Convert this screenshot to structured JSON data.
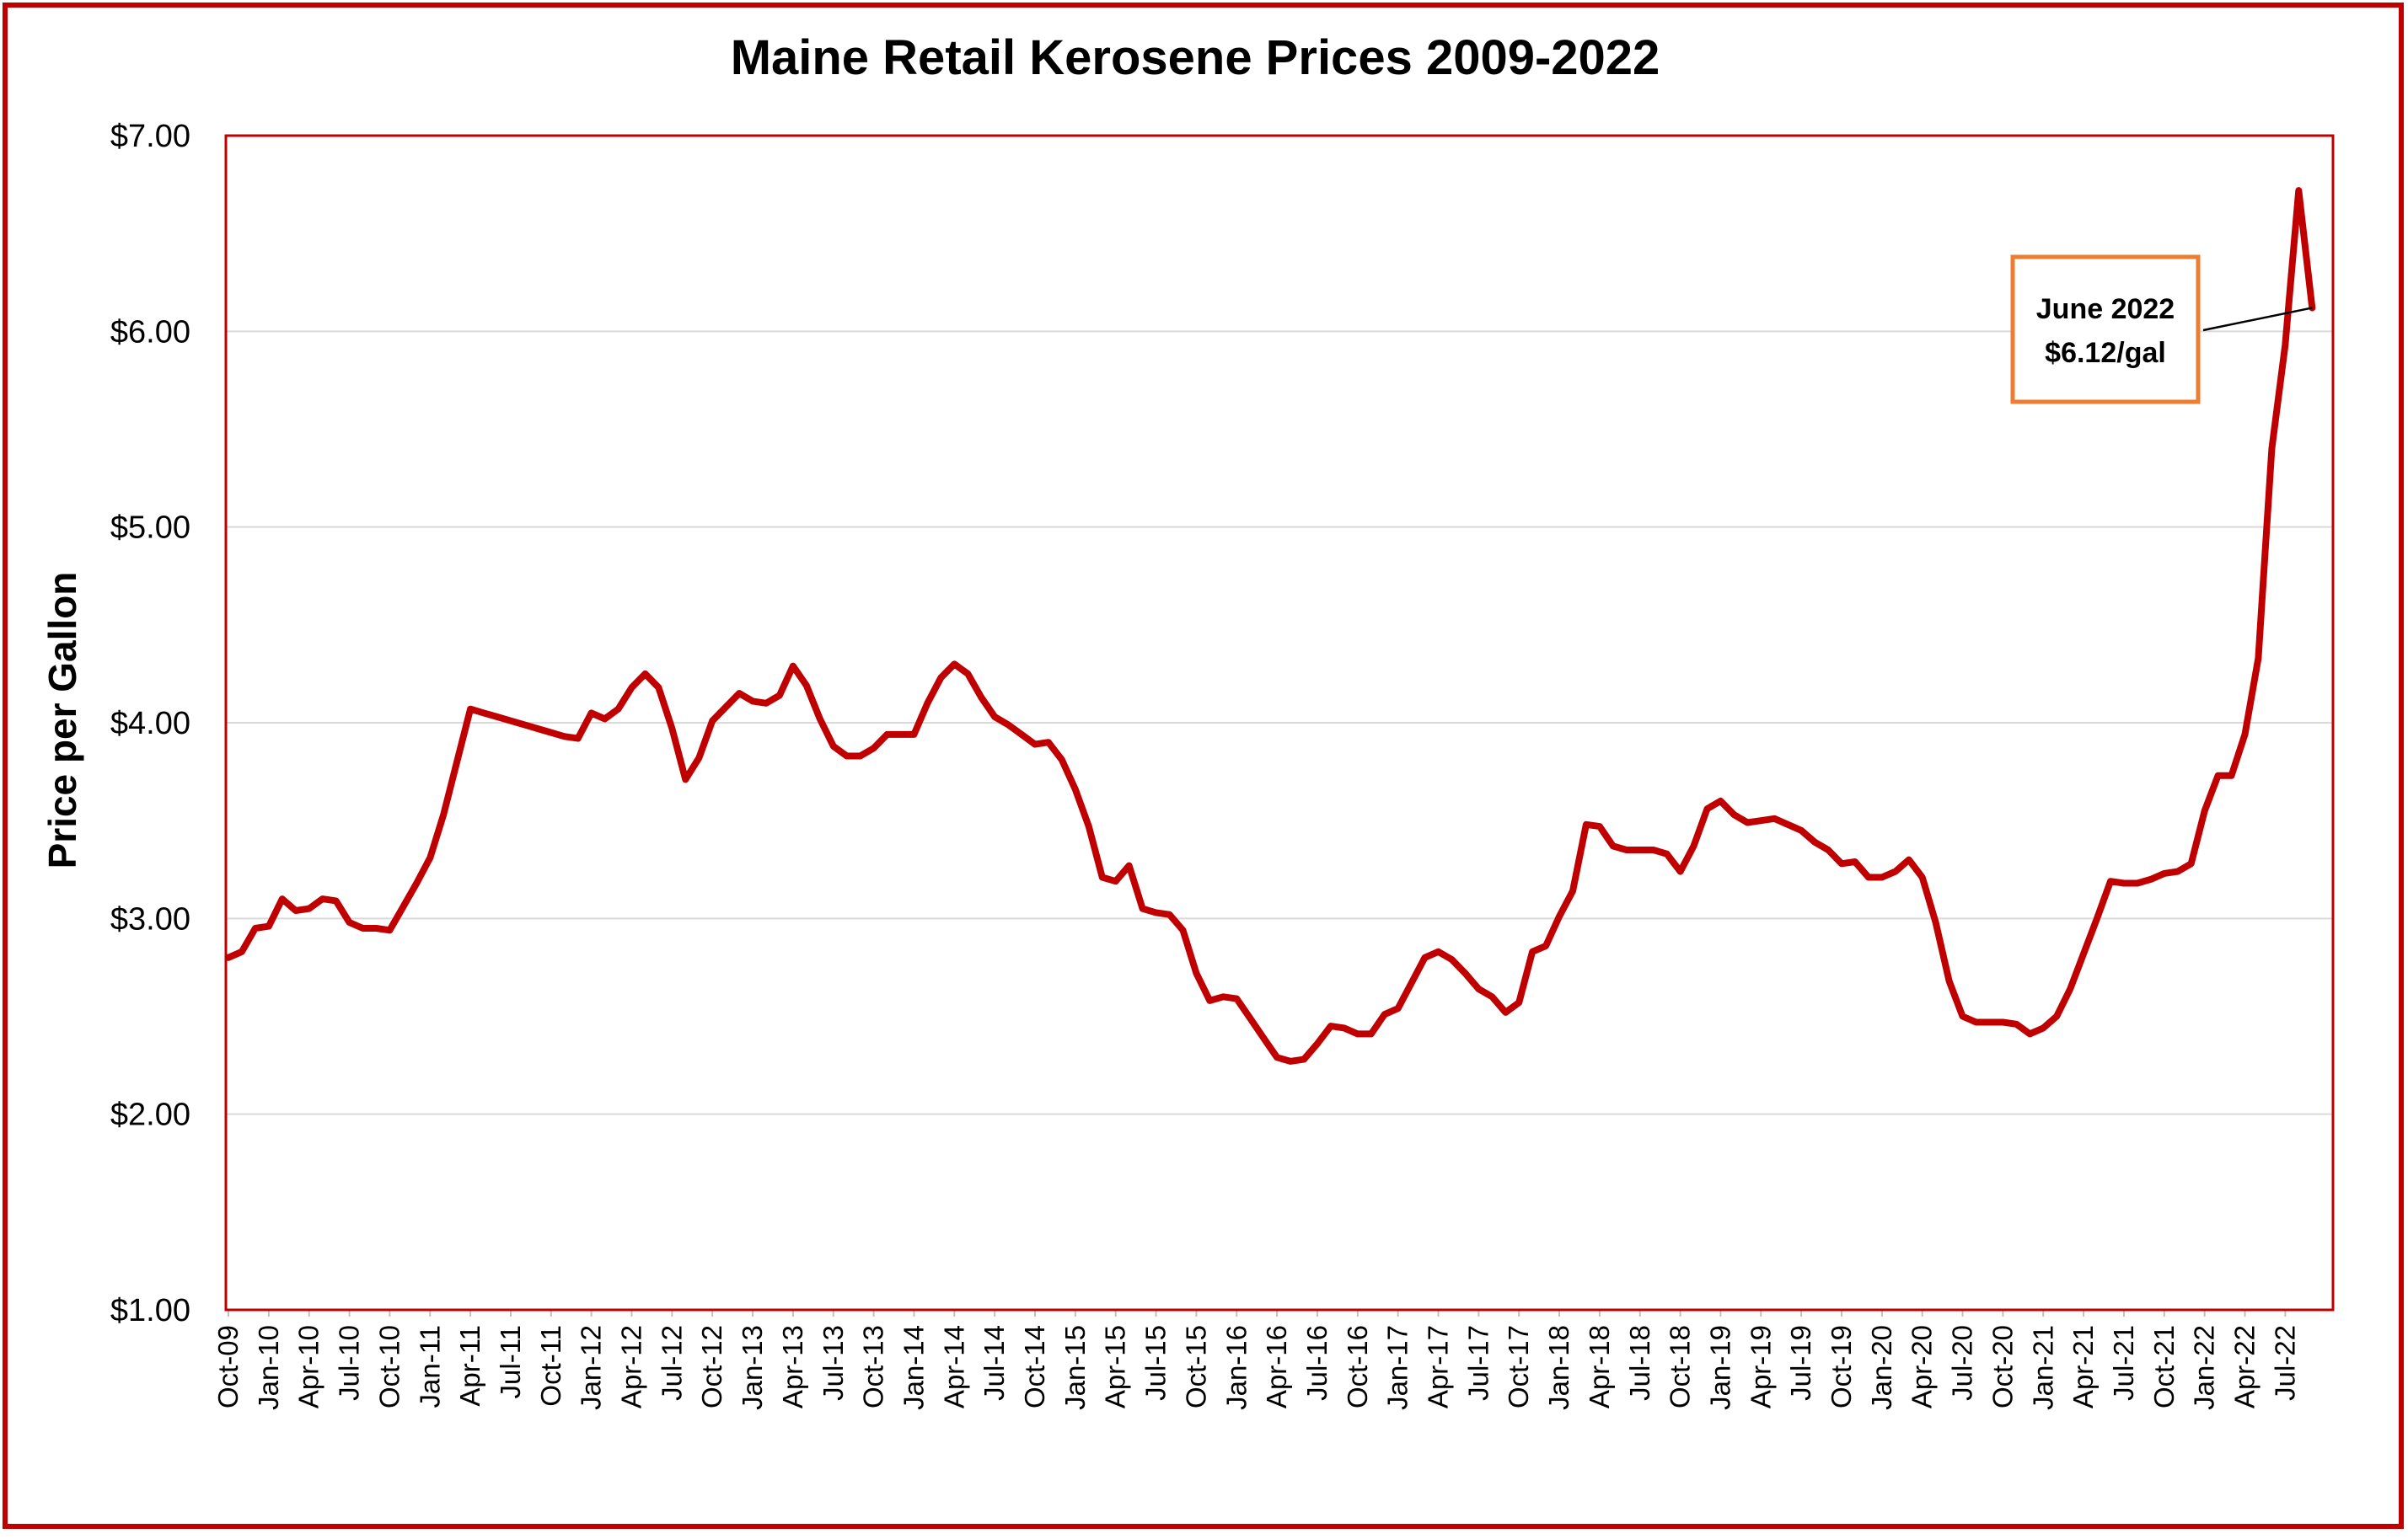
{
  "chart_data": {
    "type": "line",
    "title": "Maine Retail Kerosene Prices 2009-2022",
    "xlabel": "",
    "ylabel": "Price per Gallon",
    "ylim": [
      1,
      7
    ],
    "yticks": [
      "$1.00",
      "$2.00",
      "$3.00",
      "$4.00",
      "$5.00",
      "$6.00",
      "$7.00"
    ],
    "grid": true,
    "legend": "none",
    "line_color": "#C00000",
    "border_color": "#C00000",
    "x_tick_labels": [
      "Oct-09",
      "Jan-10",
      "Apr-10",
      "Jul-10",
      "Oct-10",
      "Jan-11",
      "Apr-11",
      "Jul-11",
      "Oct-11",
      "Jan-12",
      "Apr-12",
      "Jul-12",
      "Oct-12",
      "Jan-13",
      "Apr-13",
      "Jul-13",
      "Oct-13",
      "Jan-14",
      "Apr-14",
      "Jul-14",
      "Oct-14",
      "Jan-15",
      "Apr-15",
      "Jul-15",
      "Oct-15",
      "Jan-16",
      "Apr-16",
      "Jul-16",
      "Oct-16",
      "Jan-17",
      "Apr-17",
      "Jul-17",
      "Oct-17",
      "Jan-18",
      "Apr-18",
      "Jul-18",
      "Oct-18",
      "Jan-19",
      "Apr-19",
      "Jul-19",
      "Oct-19",
      "Jan-20",
      "Apr-20",
      "Jul-20",
      "Oct-20",
      "Jan-21",
      "Apr-21",
      "Jul-21",
      "Oct-21",
      "Jan-22",
      "Apr-22",
      "Jul-22"
    ],
    "series": [
      {
        "values": [
          [
            0,
            2.8
          ],
          [
            1,
            2.83
          ],
          [
            2,
            2.95
          ],
          [
            3,
            2.96
          ],
          [
            4,
            3.1
          ],
          [
            5,
            3.04
          ],
          [
            6,
            3.05
          ],
          [
            7,
            3.1
          ],
          [
            8,
            3.09
          ],
          [
            9,
            2.98
          ],
          [
            10,
            2.95
          ],
          [
            11,
            2.95
          ],
          [
            12,
            2.94
          ],
          [
            13,
            3.06
          ],
          [
            14,
            3.18
          ],
          [
            15,
            3.31
          ],
          [
            16,
            3.53
          ],
          [
            17,
            3.8
          ],
          [
            18,
            4.07
          ],
          [
            19,
            4.05
          ],
          [
            20,
            4.03
          ],
          [
            21,
            4.01
          ],
          [
            22,
            3.99
          ],
          [
            23,
            3.97
          ],
          [
            24,
            3.95
          ],
          [
            25,
            3.93
          ],
          [
            26,
            3.92
          ],
          [
            27,
            4.05
          ],
          [
            28,
            4.02
          ],
          [
            29,
            4.07
          ],
          [
            30,
            4.18
          ],
          [
            31,
            4.25
          ],
          [
            32,
            4.18
          ],
          [
            33,
            3.97
          ],
          [
            34,
            3.71
          ],
          [
            35,
            3.82
          ],
          [
            36,
            4.01
          ],
          [
            37,
            4.08
          ],
          [
            38,
            4.15
          ],
          [
            39,
            4.11
          ],
          [
            40,
            4.1
          ],
          [
            41,
            4.14
          ],
          [
            42,
            4.29
          ],
          [
            43,
            4.19
          ],
          [
            44,
            4.02
          ],
          [
            45,
            3.88
          ],
          [
            46,
            3.83
          ],
          [
            47,
            3.83
          ],
          [
            48,
            3.87
          ],
          [
            49,
            3.94
          ],
          [
            50,
            3.94
          ],
          [
            51,
            3.94
          ],
          [
            52,
            4.1
          ],
          [
            53,
            4.23
          ],
          [
            54,
            4.3
          ],
          [
            55,
            4.25
          ],
          [
            56,
            4.13
          ],
          [
            57,
            4.03
          ],
          [
            58,
            3.99
          ],
          [
            59,
            3.94
          ],
          [
            60,
            3.89
          ],
          [
            61,
            3.9
          ],
          [
            62,
            3.81
          ],
          [
            63,
            3.66
          ],
          [
            64,
            3.47
          ],
          [
            65,
            3.21
          ],
          [
            66,
            3.19
          ],
          [
            67,
            3.27
          ],
          [
            68,
            3.05
          ],
          [
            69,
            3.03
          ],
          [
            70,
            3.02
          ],
          [
            71,
            2.94
          ],
          [
            72,
            2.72
          ],
          [
            73,
            2.58
          ],
          [
            74,
            2.6
          ],
          [
            75,
            2.59
          ],
          [
            76,
            2.49
          ],
          [
            77,
            2.39
          ],
          [
            78,
            2.29
          ],
          [
            79,
            2.27
          ],
          [
            80,
            2.28
          ],
          [
            81,
            2.36
          ],
          [
            82,
            2.45
          ],
          [
            83,
            2.44
          ],
          [
            84,
            2.41
          ],
          [
            85,
            2.41
          ],
          [
            86,
            2.51
          ],
          [
            87,
            2.54
          ],
          [
            88,
            2.67
          ],
          [
            89,
            2.8
          ],
          [
            90,
            2.83
          ],
          [
            91,
            2.79
          ],
          [
            92,
            2.72
          ],
          [
            93,
            2.64
          ],
          [
            94,
            2.6
          ],
          [
            95,
            2.52
          ],
          [
            96,
            2.57
          ],
          [
            97,
            2.83
          ],
          [
            98,
            2.86
          ],
          [
            99,
            3.01
          ],
          [
            100,
            3.14
          ],
          [
            101,
            3.48
          ],
          [
            102,
            3.47
          ],
          [
            103,
            3.37
          ],
          [
            104,
            3.35
          ],
          [
            105,
            3.35
          ],
          [
            106,
            3.35
          ],
          [
            107,
            3.33
          ],
          [
            108,
            3.24
          ],
          [
            109,
            3.37
          ],
          [
            110,
            3.56
          ],
          [
            111,
            3.6
          ],
          [
            112,
            3.53
          ],
          [
            113,
            3.49
          ],
          [
            114,
            3.5
          ],
          [
            115,
            3.51
          ],
          [
            116,
            3.48
          ],
          [
            117,
            3.45
          ],
          [
            118,
            3.39
          ],
          [
            119,
            3.35
          ],
          [
            120,
            3.28
          ],
          [
            121,
            3.29
          ],
          [
            122,
            3.21
          ],
          [
            123,
            3.21
          ],
          [
            124,
            3.24
          ],
          [
            125,
            3.3
          ],
          [
            126,
            3.21
          ],
          [
            127,
            2.98
          ],
          [
            128,
            2.68
          ],
          [
            129,
            2.5
          ],
          [
            130,
            2.47
          ],
          [
            131,
            2.47
          ],
          [
            132,
            2.47
          ],
          [
            133,
            2.46
          ],
          [
            134,
            2.41
          ],
          [
            135,
            2.44
          ],
          [
            136,
            2.5
          ],
          [
            137,
            2.64
          ],
          [
            138,
            2.82
          ],
          [
            139,
            3.0
          ],
          [
            140,
            3.19
          ],
          [
            141,
            3.18
          ],
          [
            142,
            3.18
          ],
          [
            143,
            3.2
          ],
          [
            144,
            3.23
          ],
          [
            145,
            3.24
          ],
          [
            146,
            3.28
          ],
          [
            147,
            3.55
          ],
          [
            148,
            3.73
          ],
          [
            149,
            3.73
          ],
          [
            150,
            3.94
          ],
          [
            151,
            4.33
          ],
          [
            152,
            5.4
          ],
          [
            153,
            5.93
          ],
          [
            154,
            6.72
          ],
          [
            155,
            6.12
          ]
        ]
      }
    ],
    "annotation": {
      "line1": "June 2022",
      "line2": "$6.12/gal",
      "border_color": "#ED7D31",
      "point_index": 155,
      "point_value": 6.12
    }
  }
}
